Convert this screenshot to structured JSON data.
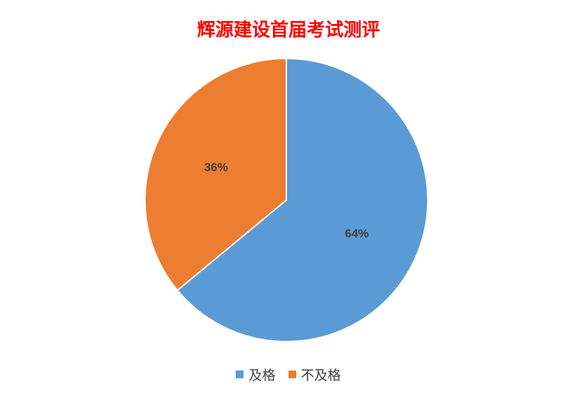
{
  "chart_data": {
    "type": "pie",
    "title": "辉源建设首届考试测评",
    "categories": [
      "及格",
      "不及格"
    ],
    "values": [
      64,
      36
    ],
    "labels": [
      "64%",
      "36%"
    ],
    "colors": [
      "#5b9bd5",
      "#ed7d31"
    ],
    "legend_position": "bottom",
    "start_angle_deg": 0,
    "direction": "clockwise"
  }
}
